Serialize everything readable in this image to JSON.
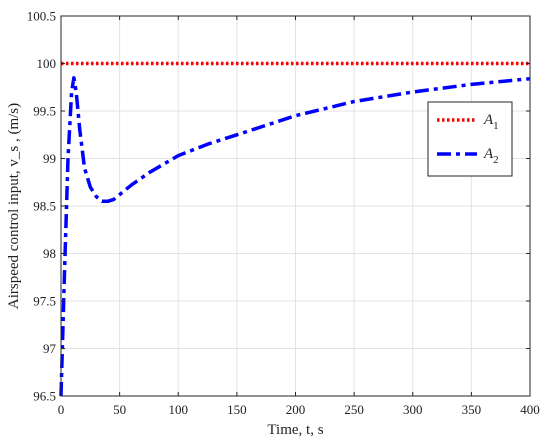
{
  "chart_data": {
    "type": "line",
    "xlabel": "Time,  t, s",
    "ylabel": "Airspeed control input,  v_s , (m/s)",
    "xlim": [
      0,
      400
    ],
    "ylim": [
      96.5,
      100.5
    ],
    "xticks": [
      0,
      50,
      100,
      150,
      200,
      250,
      300,
      350,
      400
    ],
    "yticks": [
      96.5,
      97,
      97.5,
      98,
      98.5,
      99,
      99.5,
      100,
      100.5
    ],
    "xtick_labels": [
      "0",
      "50",
      "100",
      "150",
      "200",
      "250",
      "300",
      "350",
      "400"
    ],
    "ytick_labels": [
      "96.5",
      "97",
      "97.5",
      "98",
      "98.5",
      "99",
      "99.5",
      "100",
      "100.5"
    ],
    "grid": true,
    "legend_position": "upper-right",
    "series": [
      {
        "name": "A1",
        "color": "#ff0000",
        "style": "dotted",
        "x": [
          0,
          400
        ],
        "y": [
          100,
          100
        ]
      },
      {
        "name": "A2",
        "color": "#0000ff",
        "style": "dash-dot",
        "x": [
          0,
          3,
          6,
          9,
          11,
          13,
          16,
          20,
          25,
          30,
          35,
          40,
          45,
          50,
          60,
          75,
          100,
          125,
          150,
          200,
          250,
          300,
          350,
          400
        ],
        "y": [
          96.5,
          97.8,
          99.0,
          99.7,
          99.85,
          99.7,
          99.3,
          98.9,
          98.7,
          98.6,
          98.55,
          98.55,
          98.57,
          98.62,
          98.72,
          98.85,
          99.03,
          99.15,
          99.25,
          99.45,
          99.6,
          99.7,
          99.78,
          99.84
        ]
      }
    ]
  }
}
